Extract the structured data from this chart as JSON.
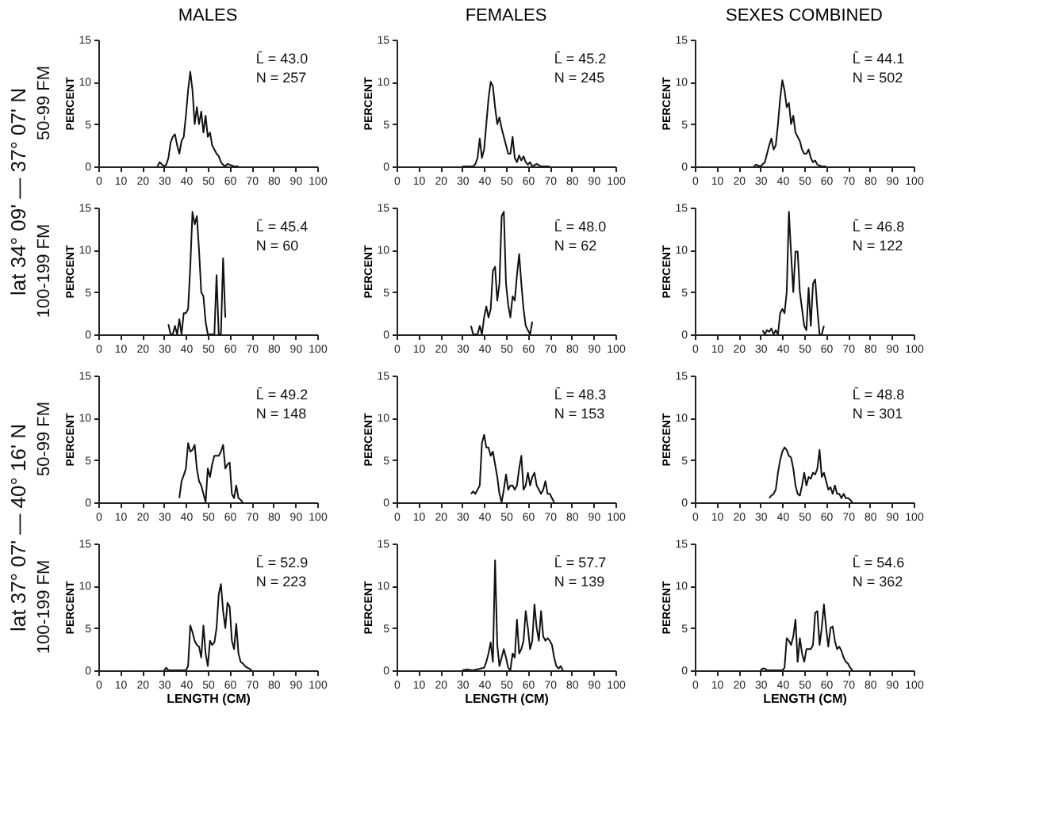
{
  "chart_data": [
    {
      "type": "line",
      "title": "MALES",
      "ylabel": "PERCENT",
      "color": "#111111",
      "xlim": [
        0,
        100
      ],
      "ylim": [
        0,
        15
      ],
      "xticks": [
        0,
        10,
        20,
        30,
        40,
        50,
        60,
        70,
        80,
        90,
        100
      ],
      "yticks": [
        0,
        5,
        10,
        15
      ],
      "annotations": [
        "L̄ = 43.0",
        "N = 257",
        "50-99 FM",
        "lat 34° 09' — 37° 07' N"
      ],
      "x": [
        27,
        28,
        30,
        31,
        32,
        33,
        34,
        35,
        36,
        37,
        38,
        39,
        40,
        41,
        42,
        43,
        44,
        45,
        46,
        47,
        48,
        49,
        50,
        51,
        52,
        53,
        54,
        55,
        56,
        57,
        58,
        59,
        60,
        62,
        64
      ],
      "values": [
        0,
        0.5,
        0,
        0.2,
        1,
        2.8,
        3.5,
        3.8,
        2.5,
        1.5,
        3,
        3.5,
        6,
        9,
        11.2,
        9,
        5,
        7,
        5,
        6.5,
        4,
        6,
        3.5,
        4,
        2.5,
        2,
        1.5,
        1.2,
        0.5,
        0.2,
        0,
        0.3,
        0.2,
        0,
        0
      ]
    },
    {
      "type": "line",
      "title": "FEMALES",
      "ylabel": "PERCENT",
      "color": "#111111",
      "xlim": [
        0,
        100
      ],
      "ylim": [
        0,
        15
      ],
      "xticks": [
        0,
        10,
        20,
        30,
        40,
        50,
        60,
        70,
        80,
        90,
        100
      ],
      "yticks": [
        0,
        5,
        10,
        15
      ],
      "annotations": [
        "L̄ = 45.2",
        "N = 245"
      ],
      "x": [
        30,
        35,
        36,
        37,
        38,
        39,
        40,
        41,
        42,
        43,
        44,
        45,
        46,
        47,
        48,
        49,
        50,
        51,
        52,
        53,
        54,
        55,
        56,
        57,
        58,
        59,
        60,
        61,
        62,
        64,
        66,
        70
      ],
      "values": [
        0,
        0,
        0.3,
        1,
        3.3,
        1,
        2,
        5,
        8,
        10,
        9.5,
        7,
        5,
        5.8,
        4.5,
        3.5,
        2.5,
        1.5,
        1.5,
        3.5,
        1,
        0.5,
        1.3,
        0.7,
        1.2,
        0.5,
        0.2,
        0.5,
        0,
        0.3,
        0,
        0
      ]
    },
    {
      "type": "line",
      "title": "SEXES  COMBINED",
      "ylabel": "PERCENT",
      "color": "#111111",
      "xlim": [
        0,
        100
      ],
      "ylim": [
        0,
        15
      ],
      "xticks": [
        0,
        10,
        20,
        30,
        40,
        50,
        60,
        70,
        80,
        90,
        100
      ],
      "yticks": [
        0,
        5,
        10,
        15
      ],
      "annotations": [
        "L̄ = 44.1",
        "N = 502"
      ],
      "x": [
        27,
        28,
        30,
        32,
        33,
        34,
        35,
        36,
        37,
        38,
        39,
        40,
        41,
        42,
        43,
        44,
        45,
        46,
        47,
        48,
        49,
        50,
        51,
        52,
        53,
        54,
        55,
        56,
        58,
        60
      ],
      "values": [
        0,
        0.2,
        0,
        0.5,
        1.5,
        2.5,
        3.3,
        2,
        2.5,
        5,
        8,
        10.2,
        9,
        7,
        7.5,
        5,
        6,
        4,
        3.5,
        3,
        2,
        1.5,
        1.5,
        2,
        1,
        0.5,
        0.7,
        0.2,
        0,
        0
      ]
    },
    {
      "type": "line",
      "ylabel": "PERCENT",
      "color": "#111111",
      "xlim": [
        0,
        100
      ],
      "ylim": [
        0,
        15
      ],
      "xticks": [
        0,
        10,
        20,
        30,
        40,
        50,
        60,
        70,
        80,
        90,
        100
      ],
      "yticks": [
        0,
        5,
        10,
        15
      ],
      "annotations": [
        "L̄ = 45.4",
        "N = 60",
        "100-199 FM"
      ],
      "x": [
        32,
        33,
        34,
        35,
        36,
        37,
        38,
        39,
        40,
        41,
        42,
        43,
        44,
        45,
        46,
        47,
        48,
        49,
        50,
        51,
        53,
        54,
        55,
        56,
        57,
        58
      ],
      "values": [
        1.2,
        0,
        0,
        1,
        0,
        1.8,
        0,
        2.5,
        2.5,
        3,
        8,
        14.5,
        13,
        14,
        10,
        5,
        4.5,
        1.5,
        0,
        0,
        0,
        7,
        0,
        0,
        9,
        2
      ]
    },
    {
      "type": "line",
      "ylabel": "PERCENT",
      "color": "#111111",
      "xlim": [
        0,
        100
      ],
      "ylim": [
        0,
        15
      ],
      "xticks": [
        0,
        10,
        20,
        30,
        40,
        50,
        60,
        70,
        80,
        90,
        100
      ],
      "yticks": [
        0,
        5,
        10,
        15
      ],
      "annotations": [
        "L̄ = 48.0",
        "N = 62"
      ],
      "x": [
        34,
        35,
        37,
        38,
        39,
        40,
        41,
        42,
        43,
        44,
        45,
        46,
        47,
        48,
        49,
        50,
        51,
        52,
        53,
        54,
        55,
        56,
        57,
        58,
        59,
        60,
        61,
        62
      ],
      "values": [
        1,
        0,
        0,
        1,
        0,
        2,
        3.3,
        2,
        3,
        7.5,
        8,
        4,
        6,
        14,
        14.5,
        6,
        3.5,
        2,
        4.5,
        4,
        7,
        9.5,
        6,
        3,
        1,
        0.5,
        0,
        1.5
      ]
    },
    {
      "type": "line",
      "ylabel": "PERCENT",
      "color": "#111111",
      "xlim": [
        0,
        100
      ],
      "ylim": [
        0,
        15
      ],
      "xticks": [
        0,
        10,
        20,
        30,
        40,
        50,
        60,
        70,
        80,
        90,
        100
      ],
      "yticks": [
        0,
        5,
        10,
        15
      ],
      "annotations": [
        "L̄ = 46.8",
        "N = 122"
      ],
      "x": [
        31,
        32,
        33,
        34,
        35,
        36,
        37,
        38,
        39,
        40,
        41,
        42,
        43,
        44,
        45,
        46,
        47,
        48,
        49,
        50,
        51,
        52,
        53,
        54,
        55,
        56,
        57,
        58,
        59
      ],
      "values": [
        0.5,
        0,
        0.5,
        0.3,
        0.7,
        0,
        0.5,
        0,
        2.5,
        3,
        2.5,
        5,
        14.5,
        9.5,
        5,
        9.8,
        9.8,
        5,
        3,
        1,
        0.5,
        5.5,
        1,
        6,
        6.5,
        3,
        0,
        0,
        1
      ]
    },
    {
      "type": "line",
      "ylabel": "PERCENT",
      "color": "#111111",
      "xlim": [
        0,
        100
      ],
      "ylim": [
        0,
        15
      ],
      "xticks": [
        0,
        10,
        20,
        30,
        40,
        50,
        60,
        70,
        80,
        90,
        100
      ],
      "yticks": [
        0,
        5,
        10,
        15
      ],
      "annotations": [
        "L̄ = 49.2",
        "N = 148",
        "50-99 FM",
        "lat 37° 07' — 40° 16' N"
      ],
      "x": [
        37,
        38,
        39,
        40,
        41,
        42,
        43,
        44,
        45,
        46,
        47,
        48,
        49,
        50,
        51,
        52,
        53,
        54,
        55,
        56,
        57,
        58,
        59,
        60,
        61,
        62,
        63,
        64,
        65,
        66
      ],
      "values": [
        0.5,
        2.5,
        3.2,
        4,
        7,
        6,
        6.2,
        6.8,
        4,
        2.5,
        2,
        1,
        0,
        4,
        3,
        4.5,
        5.5,
        5.5,
        5.5,
        6,
        6.8,
        4,
        4.5,
        4.7,
        1,
        0.5,
        2,
        0.5,
        0.3,
        0
      ]
    },
    {
      "type": "line",
      "ylabel": "PERCENT",
      "color": "#111111",
      "xlim": [
        0,
        100
      ],
      "ylim": [
        0,
        15
      ],
      "xticks": [
        0,
        10,
        20,
        30,
        40,
        50,
        60,
        70,
        80,
        90,
        100
      ],
      "yticks": [
        0,
        5,
        10,
        15
      ],
      "annotations": [
        "L̄ = 48.3",
        "N = 153"
      ],
      "x": [
        34,
        35,
        36,
        37,
        38,
        39,
        40,
        41,
        42,
        43,
        44,
        45,
        46,
        47,
        48,
        49,
        50,
        51,
        52,
        53,
        54,
        55,
        56,
        57,
        58,
        59,
        60,
        61,
        62,
        63,
        64,
        65,
        66,
        67,
        68,
        69,
        70,
        71,
        72
      ],
      "values": [
        1,
        1.3,
        1,
        1.5,
        2,
        7,
        8,
        6.5,
        6.5,
        5.5,
        6,
        4.5,
        3,
        1,
        0,
        1.5,
        3.3,
        1.5,
        2,
        2,
        1.5,
        2,
        4,
        5.5,
        1.5,
        2,
        3.5,
        2,
        3,
        3.5,
        2,
        1.5,
        1,
        1.5,
        2.5,
        1,
        1,
        0.5,
        0
      ]
    },
    {
      "type": "line",
      "ylabel": "PERCENT",
      "color": "#111111",
      "xlim": [
        0,
        100
      ],
      "ylim": [
        0,
        15
      ],
      "xticks": [
        0,
        10,
        20,
        30,
        40,
        50,
        60,
        70,
        80,
        90,
        100
      ],
      "yticks": [
        0,
        5,
        10,
        15
      ],
      "annotations": [
        "L̄ = 48.8",
        "N = 301"
      ],
      "x": [
        34,
        35,
        36,
        37,
        38,
        39,
        40,
        41,
        42,
        43,
        44,
        45,
        46,
        47,
        48,
        49,
        50,
        51,
        52,
        53,
        54,
        55,
        56,
        57,
        58,
        59,
        60,
        61,
        62,
        63,
        64,
        65,
        66,
        67,
        68,
        69,
        70,
        71,
        72
      ],
      "values": [
        0.5,
        0.8,
        1,
        1.5,
        3.5,
        5,
        6,
        6.5,
        6.2,
        5.5,
        5.3,
        4,
        2,
        1,
        0.8,
        2,
        3.5,
        2,
        3,
        2.8,
        3.5,
        3.3,
        4,
        6.2,
        3,
        3.5,
        2.5,
        1.5,
        1.8,
        1,
        2,
        1,
        1,
        0.5,
        1,
        0.5,
        0.5,
        0.3,
        0
      ]
    },
    {
      "type": "line",
      "xlabel": "LENGTH (CM)",
      "ylabel": "PERCENT",
      "color": "#111111",
      "xlim": [
        0,
        100
      ],
      "ylim": [
        0,
        15
      ],
      "xticks": [
        0,
        10,
        20,
        30,
        40,
        50,
        60,
        70,
        80,
        90,
        100
      ],
      "yticks": [
        0,
        5,
        10,
        15
      ],
      "annotations": [
        "L̄ = 52.9",
        "N = 223",
        "100-199 FM"
      ],
      "x": [
        30,
        31,
        32,
        40,
        41,
        42,
        43,
        44,
        45,
        46,
        47,
        48,
        49,
        50,
        51,
        52,
        53,
        54,
        55,
        56,
        57,
        58,
        59,
        60,
        61,
        62,
        63,
        64,
        65,
        66,
        67,
        68,
        69,
        70
      ],
      "values": [
        0,
        0.3,
        0,
        0,
        0.5,
        5.3,
        4.5,
        3.5,
        3,
        2.8,
        1.5,
        5.3,
        2,
        0.5,
        3.5,
        3,
        3.3,
        5,
        9,
        10.2,
        7,
        5,
        8,
        7.5,
        3.5,
        2.5,
        5.5,
        2,
        1,
        0.8,
        0.5,
        0.3,
        0.2,
        0
      ]
    },
    {
      "type": "line",
      "xlabel": "LENGTH (CM)",
      "ylabel": "PERCENT",
      "color": "#111111",
      "xlim": [
        0,
        100
      ],
      "ylim": [
        0,
        15
      ],
      "xticks": [
        0,
        10,
        20,
        30,
        40,
        50,
        60,
        70,
        80,
        90,
        100
      ],
      "yticks": [
        0,
        5,
        10,
        15
      ],
      "annotations": [
        "L̄ = 57.7",
        "N = 139"
      ],
      "x": [
        30,
        32,
        35,
        40,
        41,
        42,
        43,
        44,
        45,
        46,
        47,
        48,
        49,
        50,
        51,
        52,
        53,
        54,
        55,
        56,
        57,
        58,
        59,
        60,
        61,
        62,
        63,
        64,
        65,
        66,
        67,
        68,
        69,
        70,
        71,
        72,
        73,
        74,
        75,
        76
      ],
      "values": [
        0,
        0.1,
        0,
        0.3,
        1,
        2,
        3.3,
        1,
        13,
        3,
        0.5,
        1.5,
        2.5,
        1.5,
        0.3,
        0,
        2,
        1.5,
        6,
        2,
        2.5,
        3.5,
        7,
        5,
        2.5,
        3.5,
        7.8,
        5,
        3.5,
        7,
        4,
        3.5,
        3.8,
        3.5,
        3,
        1.5,
        0.5,
        0.2,
        0.5,
        0
      ]
    },
    {
      "type": "line",
      "xlabel": "LENGTH (CM)",
      "ylabel": "PERCENT",
      "color": "#111111",
      "xlim": [
        0,
        100
      ],
      "ylim": [
        0,
        15
      ],
      "xticks": [
        0,
        10,
        20,
        30,
        40,
        50,
        60,
        70,
        80,
        90,
        100
      ],
      "yticks": [
        0,
        5,
        10,
        15
      ],
      "annotations": [
        "L̄ = 54.6",
        "N = 362"
      ],
      "x": [
        30,
        31,
        32,
        33,
        40,
        41,
        42,
        43,
        44,
        45,
        46,
        47,
        48,
        49,
        50,
        51,
        52,
        53,
        54,
        55,
        56,
        57,
        58,
        59,
        60,
        61,
        62,
        63,
        64,
        65,
        66,
        67,
        68,
        69,
        70,
        71,
        72
      ],
      "values": [
        0,
        0.2,
        0.2,
        0,
        0,
        0.3,
        3.8,
        3.5,
        3,
        4,
        6,
        1,
        3.8,
        2,
        1,
        2.5,
        2.5,
        2.5,
        3,
        6.8,
        7,
        3,
        5,
        7.8,
        5,
        2.8,
        5,
        5.2,
        3.5,
        2.5,
        2.8,
        2.3,
        1.5,
        1,
        0.8,
        0.3,
        0
      ]
    }
  ]
}
